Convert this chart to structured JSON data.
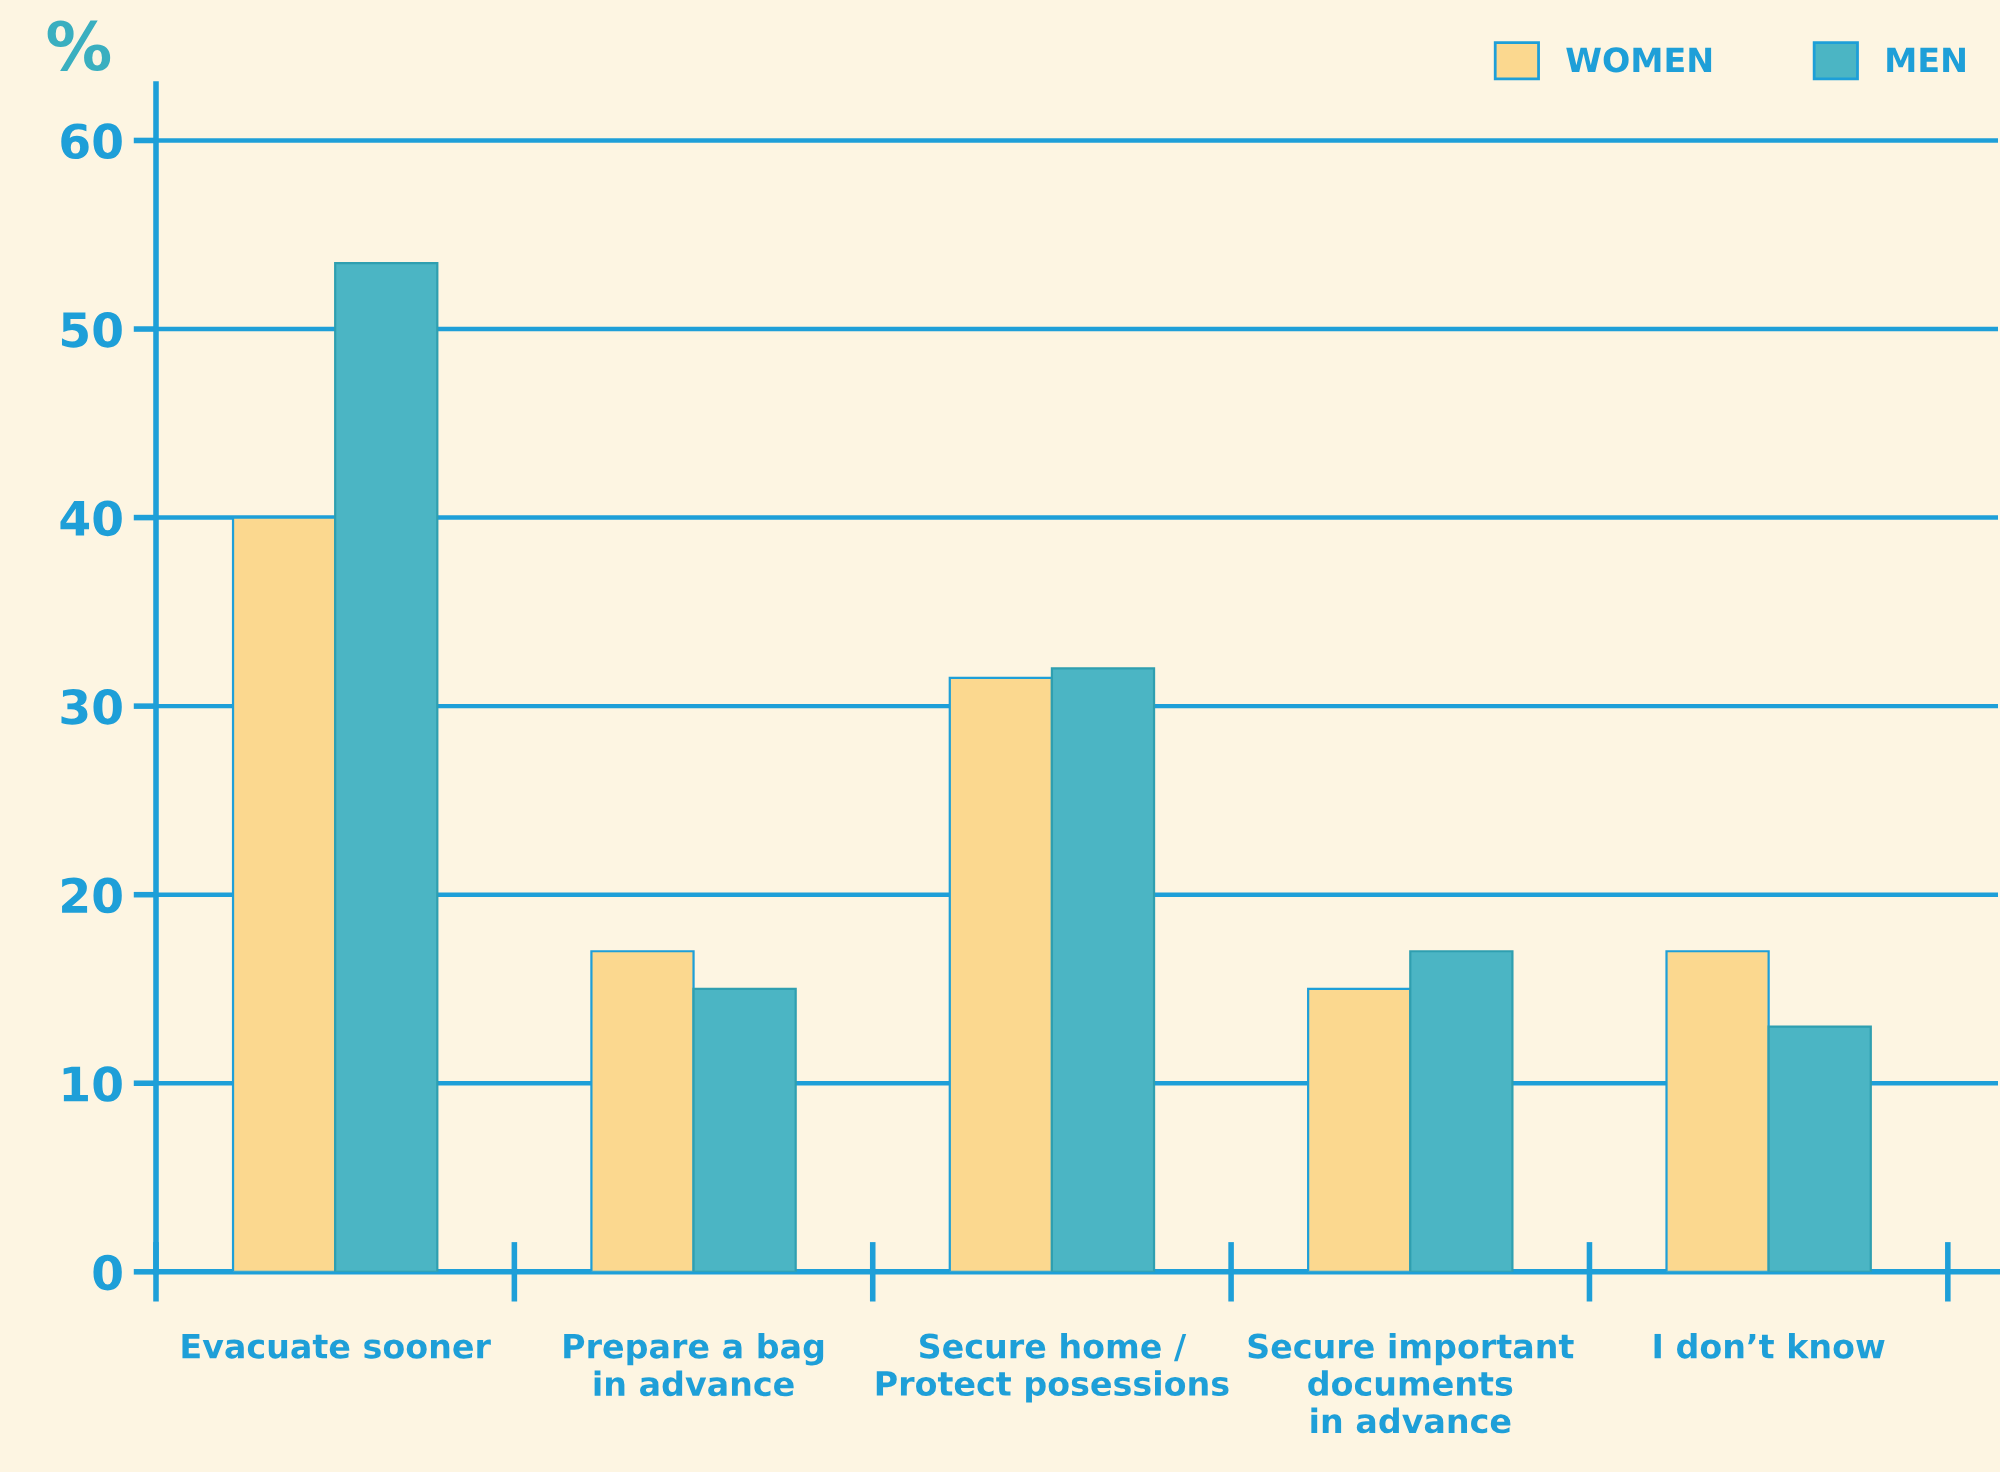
{
  "chart_data": {
    "type": "bar",
    "ylabel": "%",
    "categories": [
      "Evacuate sooner",
      "Prepare a bag\nin advance",
      "Secure home /\nProtect posessions",
      "Secure important\ndocuments\nin advance",
      "I don’t know"
    ],
    "series": [
      {
        "name": "WOMEN",
        "color": "#fbd88f",
        "values": [
          40,
          17,
          31.5,
          15,
          17
        ]
      },
      {
        "name": "MEN",
        "color": "#4bb5c4",
        "values": [
          53.5,
          15,
          32,
          17,
          13
        ]
      }
    ],
    "ylim": [
      0,
      63
    ],
    "yticks": [
      0,
      10,
      20,
      30,
      40,
      50,
      60
    ],
    "grid": "y",
    "legend": "top right"
  }
}
